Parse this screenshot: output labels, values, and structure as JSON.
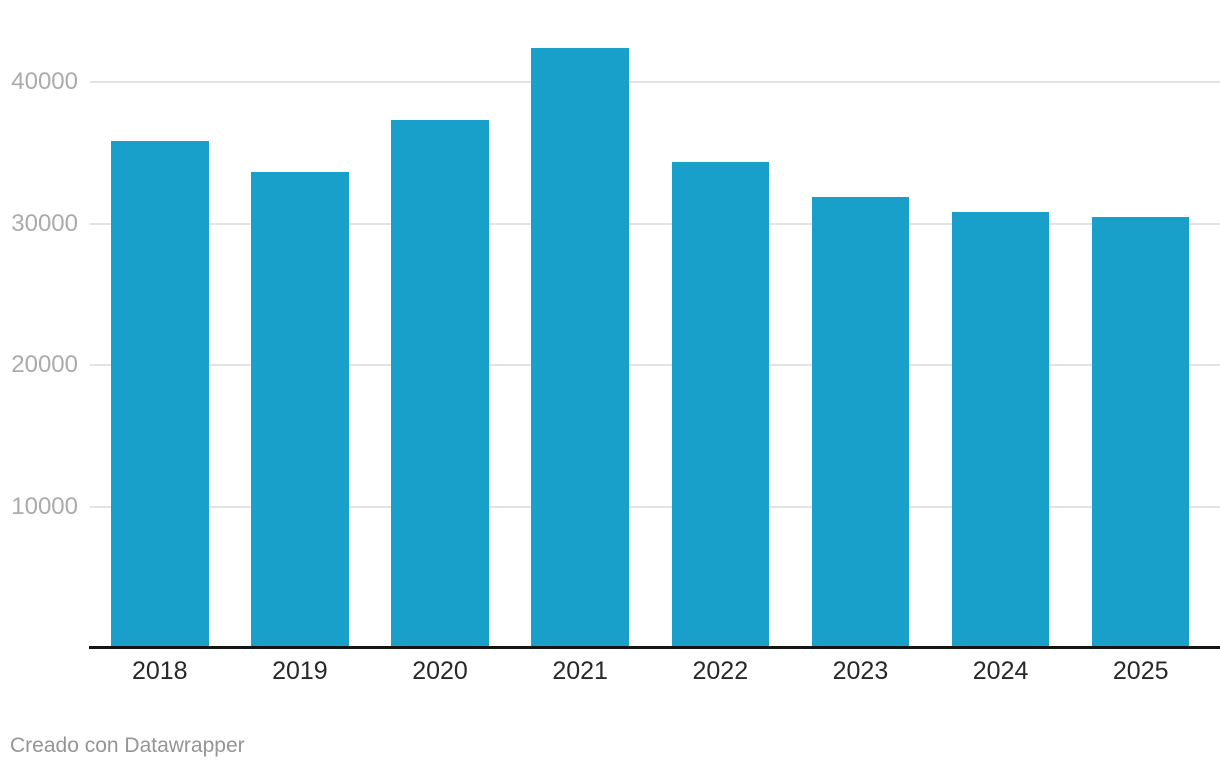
{
  "chart_data": {
    "type": "bar",
    "categories": [
      "2018",
      "2019",
      "2020",
      "2021",
      "2022",
      "2023",
      "2024",
      "2025"
    ],
    "values": [
      35850,
      33620,
      37310,
      42420,
      34360,
      31850,
      30810,
      30440
    ],
    "title": "",
    "xlabel": "",
    "ylabel": "",
    "ylim": [
      0,
      42420
    ],
    "yticks": [
      10000,
      20000,
      30000,
      40000
    ],
    "ytick_labels": [
      "10000",
      "20000",
      "30000",
      "40000"
    ],
    "grid": "horizontal",
    "legend": "none",
    "bar_color": "#18a0cb"
  },
  "colors": {
    "bar": "#18a0cb",
    "gridline": "#e3e3e3",
    "axis_line": "#141414",
    "y_tick_label": "#ababab",
    "x_tick_label": "#282828",
    "footer_text": "#959595",
    "background": "#ffffff"
  },
  "footer": {
    "attribution": "Creado con Datawrapper"
  }
}
